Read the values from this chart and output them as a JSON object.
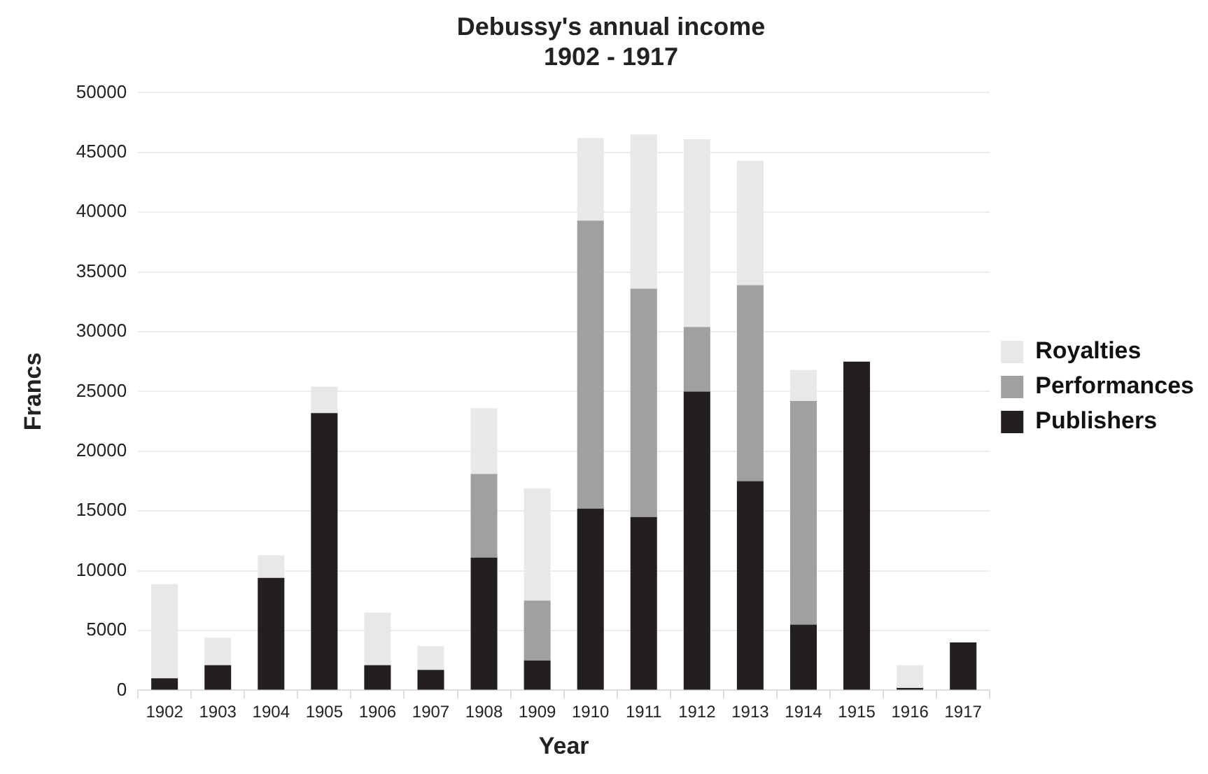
{
  "chart_data": {
    "type": "bar",
    "title": "Debussy's annual income\n1902 - 1917",
    "xlabel": "Year",
    "ylabel": "Francs",
    "categories": [
      "1902",
      "1903",
      "1904",
      "1905",
      "1906",
      "1907",
      "1908",
      "1909",
      "1910",
      "1911",
      "1912",
      "1913",
      "1914",
      "1915",
      "1916",
      "1917"
    ],
    "stacked": true,
    "series": [
      {
        "name": "Publishers",
        "color": "#231f20",
        "values": [
          1000,
          2100,
          9400,
          23200,
          2100,
          1700,
          11100,
          2500,
          15200,
          14500,
          25000,
          17500,
          5500,
          27500,
          200,
          4000
        ]
      },
      {
        "name": "Performances",
        "color": "#a0a0a0",
        "values": [
          0,
          0,
          0,
          0,
          0,
          0,
          7000,
          5000,
          24100,
          19100,
          5400,
          16400,
          18700,
          0,
          0,
          0
        ]
      },
      {
        "name": "Royalties",
        "color": "#e8e8e8",
        "values": [
          7900,
          2300,
          1900,
          2200,
          4400,
          2000,
          5500,
          9400,
          6900,
          12900,
          15700,
          10400,
          2600,
          0,
          1900,
          0
        ]
      }
    ],
    "ylim": [
      0,
      50000
    ],
    "yticks": [
      0,
      5000,
      10000,
      15000,
      20000,
      25000,
      30000,
      35000,
      40000,
      45000,
      50000
    ],
    "grid": "y",
    "legend": "right"
  }
}
